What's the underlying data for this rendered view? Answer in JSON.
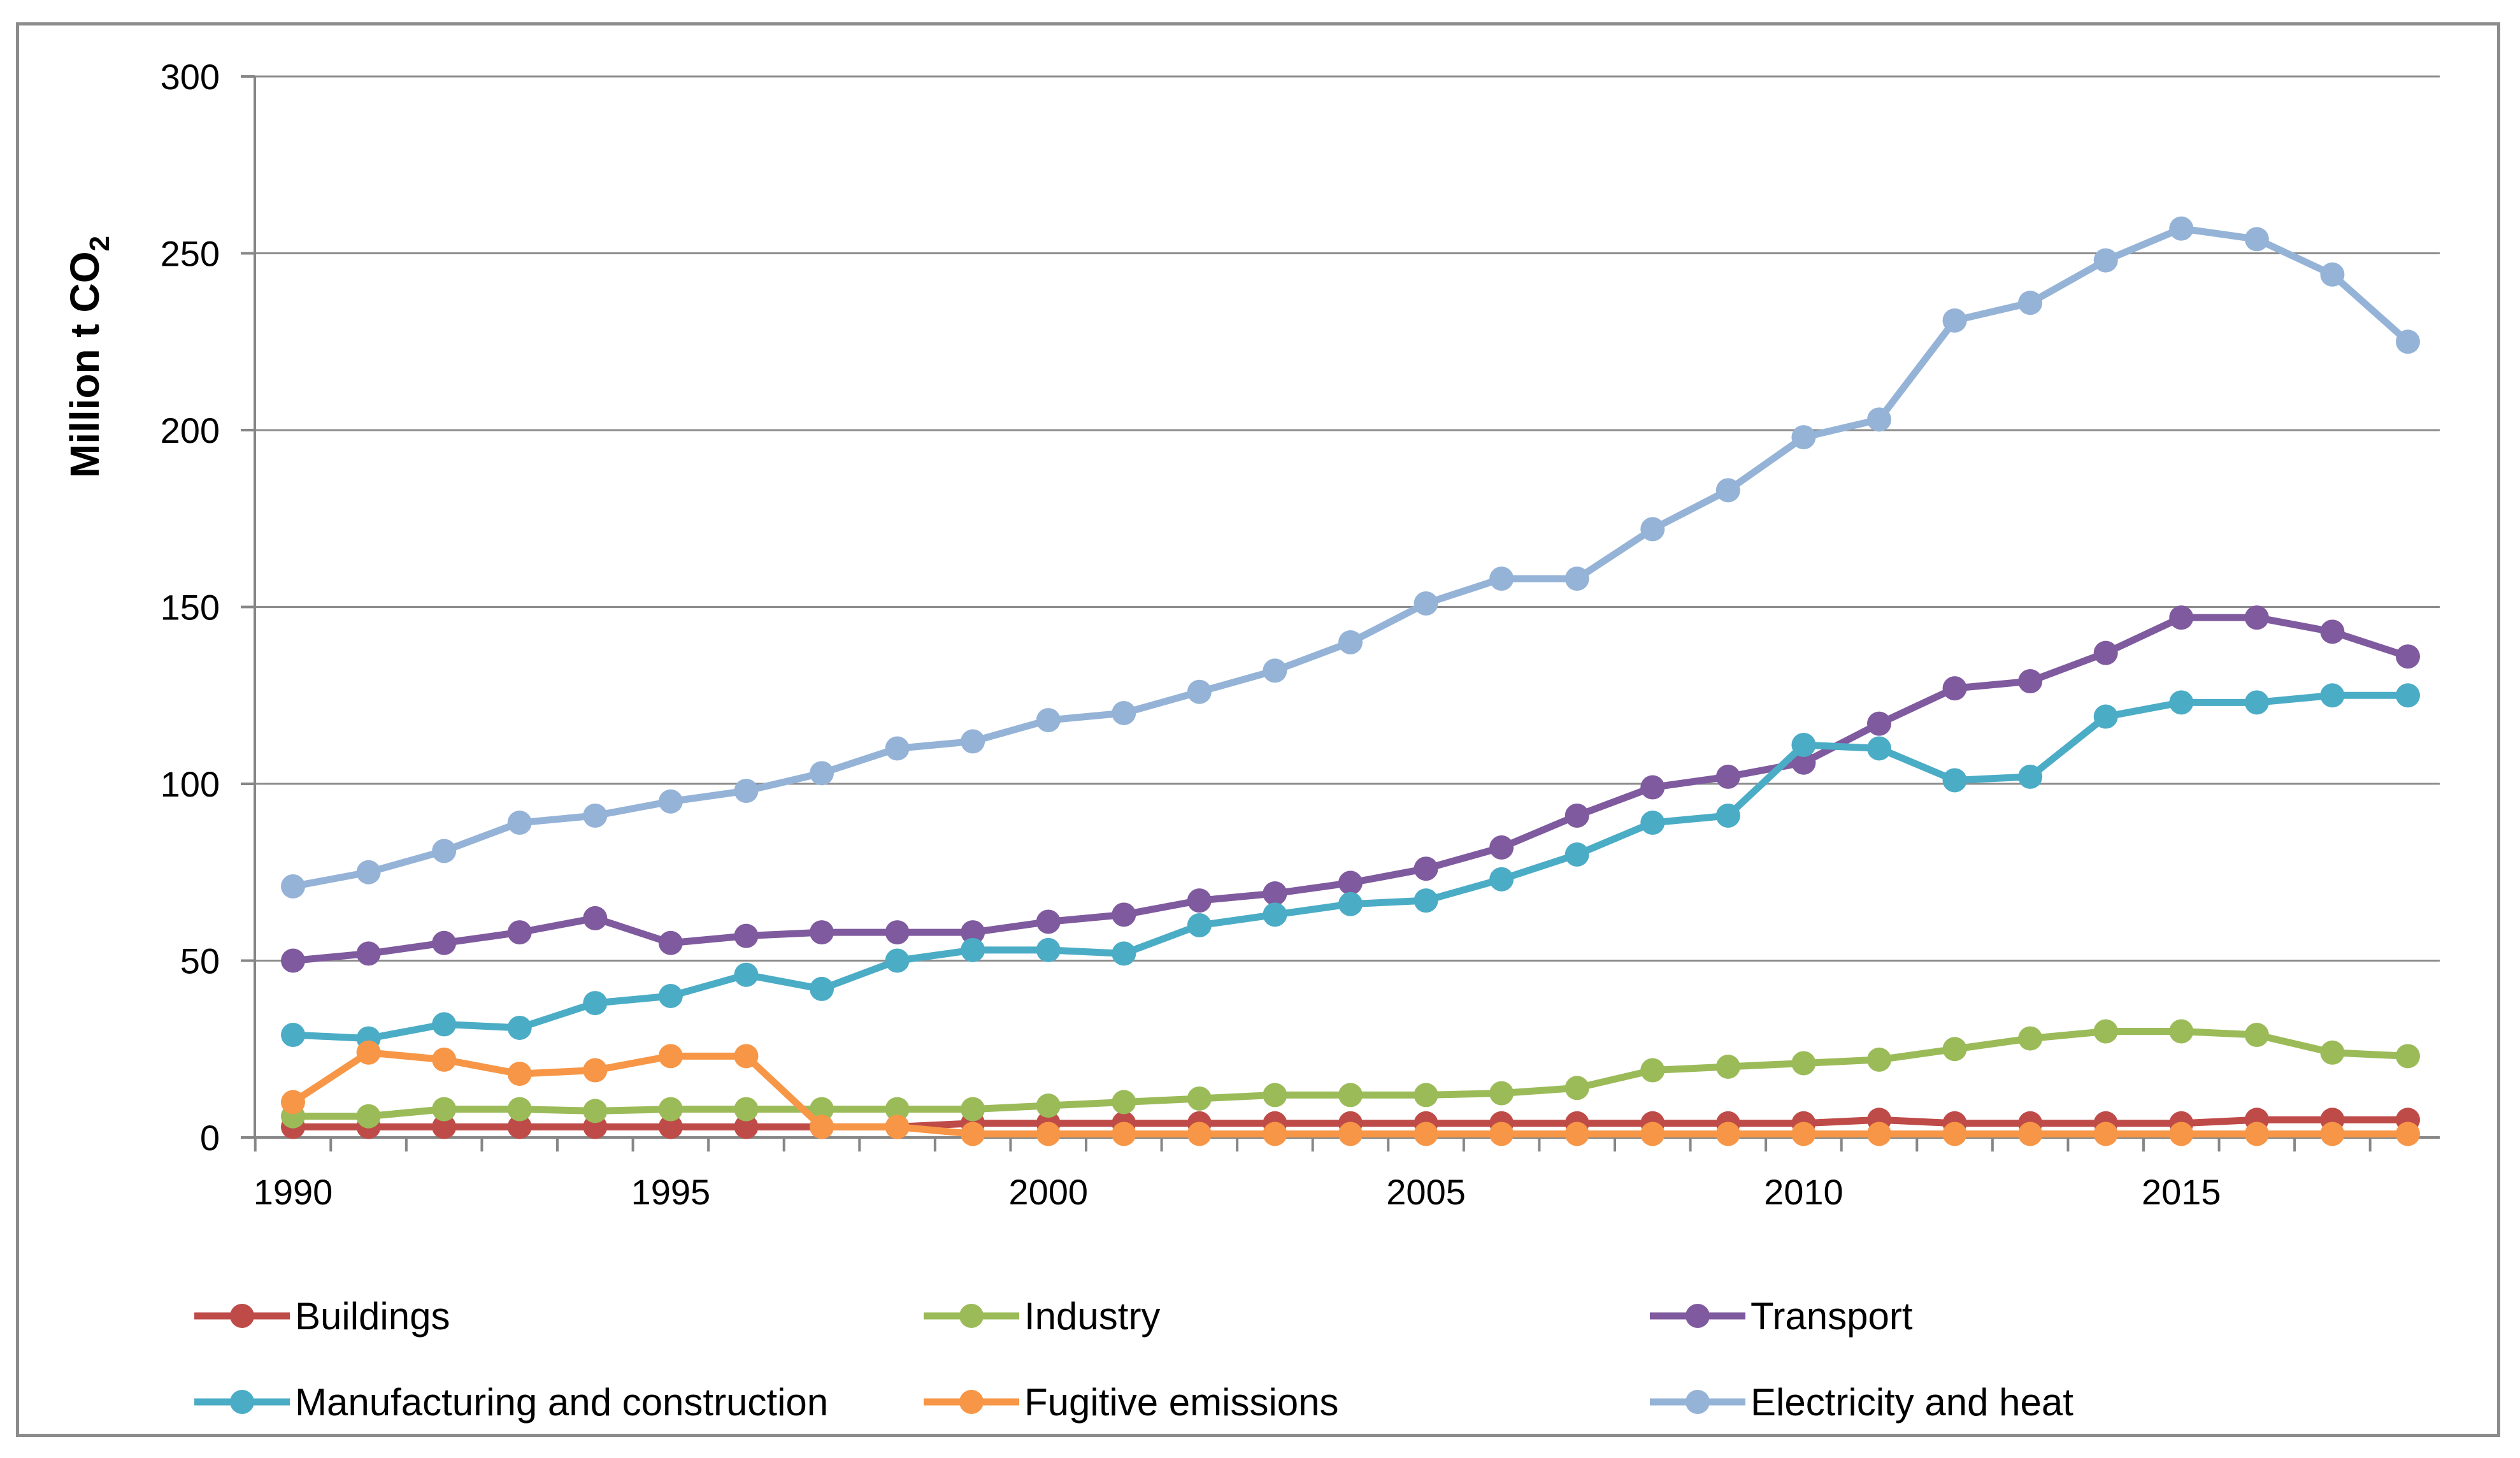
{
  "chart_data": {
    "type": "line",
    "title": "",
    "xlabel": "",
    "ylabel": "Million t CO",
    "ylabel_subscript": "2",
    "ylim": [
      0,
      300
    ],
    "xlim": [
      1990,
      2018
    ],
    "yticks": [
      0,
      50,
      100,
      150,
      200,
      250,
      300
    ],
    "xticks": [
      1990,
      1995,
      2000,
      2005,
      2010,
      2015
    ],
    "x": [
      1990,
      1991,
      1992,
      1993,
      1994,
      1995,
      1996,
      1997,
      1998,
      1999,
      2000,
      2001,
      2002,
      2003,
      2004,
      2005,
      2006,
      2007,
      2008,
      2009,
      2010,
      2011,
      2012,
      2013,
      2014,
      2015,
      2016,
      2017,
      2018
    ],
    "legend_position": "bottom",
    "series": [
      {
        "name": "Buildings",
        "color": "#be4b48",
        "values": [
          3,
          3,
          3,
          3,
          3,
          3,
          3,
          3,
          3,
          4,
          4,
          4,
          4,
          4,
          4,
          4,
          4,
          4,
          4,
          4,
          4,
          5,
          4,
          4,
          4,
          4,
          5,
          5,
          5
        ]
      },
      {
        "name": "Industry",
        "color": "#9bbb59",
        "values": [
          6,
          6,
          8,
          8,
          7.5,
          8,
          8,
          8,
          8,
          8,
          9,
          10,
          11,
          12,
          12,
          12,
          12.5,
          14,
          19,
          20,
          21,
          22,
          25,
          28,
          30,
          30,
          29,
          24,
          23
        ]
      },
      {
        "name": "Transport",
        "color": "#7f5a9e",
        "values": [
          50,
          52,
          55,
          58,
          62,
          55,
          57,
          58,
          58,
          58,
          61,
          63,
          67,
          69,
          72,
          76,
          82,
          91,
          99,
          102,
          106,
          117,
          127,
          129,
          137,
          147,
          147,
          143,
          136
        ]
      },
      {
        "name": "Manufacturing and construction",
        "color": "#4bacc6",
        "values": [
          29,
          28,
          32,
          31,
          38,
          40,
          46,
          42,
          50,
          53,
          53,
          52,
          60,
          63,
          66,
          67,
          73,
          80,
          89,
          91,
          111,
          110,
          101,
          102,
          119,
          123,
          123,
          125,
          125
        ]
      },
      {
        "name": "Fugitive emissions",
        "color": "#f79646",
        "values": [
          10,
          24,
          22,
          18,
          19,
          23,
          23,
          3,
          3,
          1,
          1,
          1,
          1,
          1,
          1,
          1,
          1,
          1,
          1,
          1,
          1,
          1,
          1,
          1,
          1,
          1,
          1,
          1,
          1
        ]
      },
      {
        "name": "Electricity and heat",
        "color": "#95b3d7",
        "values": [
          71,
          75,
          81,
          89,
          91,
          95,
          98,
          103,
          110,
          112,
          118,
          120,
          126,
          132,
          140,
          151,
          158,
          158,
          172,
          183,
          198,
          203,
          231,
          236,
          248,
          257,
          254,
          244,
          225
        ]
      }
    ]
  }
}
